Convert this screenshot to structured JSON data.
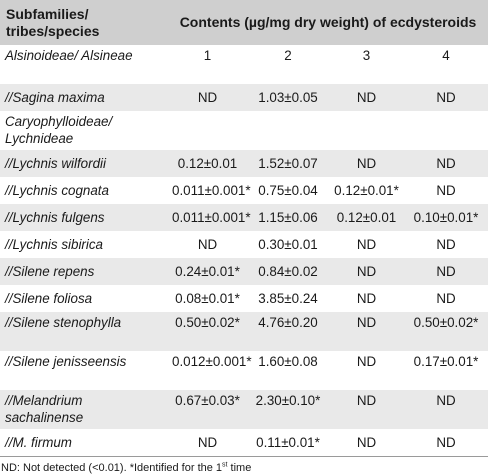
{
  "header": {
    "col0": "Subfamilies/ tribes/species",
    "contents": "Contents (µg/mg dry weight) of ecdysteroids"
  },
  "rows": [
    {
      "name": "Alsinoideae/ Alsineae",
      "vals": [
        "1",
        "2",
        "3",
        "4"
      ],
      "tall": true,
      "alt": false
    },
    {
      "name": "//Sagina maxima",
      "vals": [
        "ND",
        "1.03±0.05",
        "ND",
        "ND"
      ],
      "tall": false,
      "alt": true
    },
    {
      "name": "Caryophylloideae/ Lychnideae",
      "vals": [
        "",
        "",
        "",
        ""
      ],
      "tall": true,
      "alt": false
    },
    {
      "name": "//Lychnis wilfordii",
      "vals": [
        "0.12±0.01",
        "1.52±0.07",
        "ND",
        "ND"
      ],
      "tall": false,
      "alt": true
    },
    {
      "name": "//Lychnis cognata",
      "vals": [
        "0.011±0.001*",
        "0.75±0.04",
        "0.12±0.01*",
        "ND"
      ],
      "tall": false,
      "alt": false
    },
    {
      "name": "//Lychnis fulgens",
      "vals": [
        "0.011±0.001*",
        "1.15±0.06",
        "0.12±0.01",
        "0.10±0.01*"
      ],
      "tall": false,
      "alt": true
    },
    {
      "name": "//Lychnis sibirica",
      "vals": [
        "ND",
        "0.30±0.01",
        "ND",
        "ND"
      ],
      "tall": false,
      "alt": false
    },
    {
      "name": "//Silene repens",
      "vals": [
        "0.24±0.01*",
        "0.84±0.02",
        "ND",
        "ND"
      ],
      "tall": false,
      "alt": true
    },
    {
      "name": "//Silene foliosa",
      "vals": [
        "0.08±0.01*",
        "3.85±0.24",
        "ND",
        "ND"
      ],
      "tall": false,
      "alt": false
    },
    {
      "name": "//Silene stenophylla",
      "vals": [
        "0.50±0.02*",
        "4.76±0.20",
        "ND",
        "0.50±0.02*"
      ],
      "tall": true,
      "alt": true
    },
    {
      "name": "//Silene jenisseensis",
      "vals": [
        "0.012±0.001*",
        "1.60±0.08",
        "ND",
        "0.17±0.01*"
      ],
      "tall": true,
      "alt": false
    },
    {
      "name": "//Melandrium sachalinense",
      "vals": [
        "0.67±0.03*",
        "2.30±0.10*",
        "ND",
        "ND"
      ],
      "tall": true,
      "alt": true
    },
    {
      "name": "//M. firmum",
      "vals": [
        "ND",
        "0.11±0.01*",
        "ND",
        "ND"
      ],
      "tall": false,
      "alt": false
    }
  ],
  "footnote": {
    "text_before": "ND: Not detected (<0.01). *Identified for the 1",
    "sup": "st",
    "text_after": " time"
  }
}
